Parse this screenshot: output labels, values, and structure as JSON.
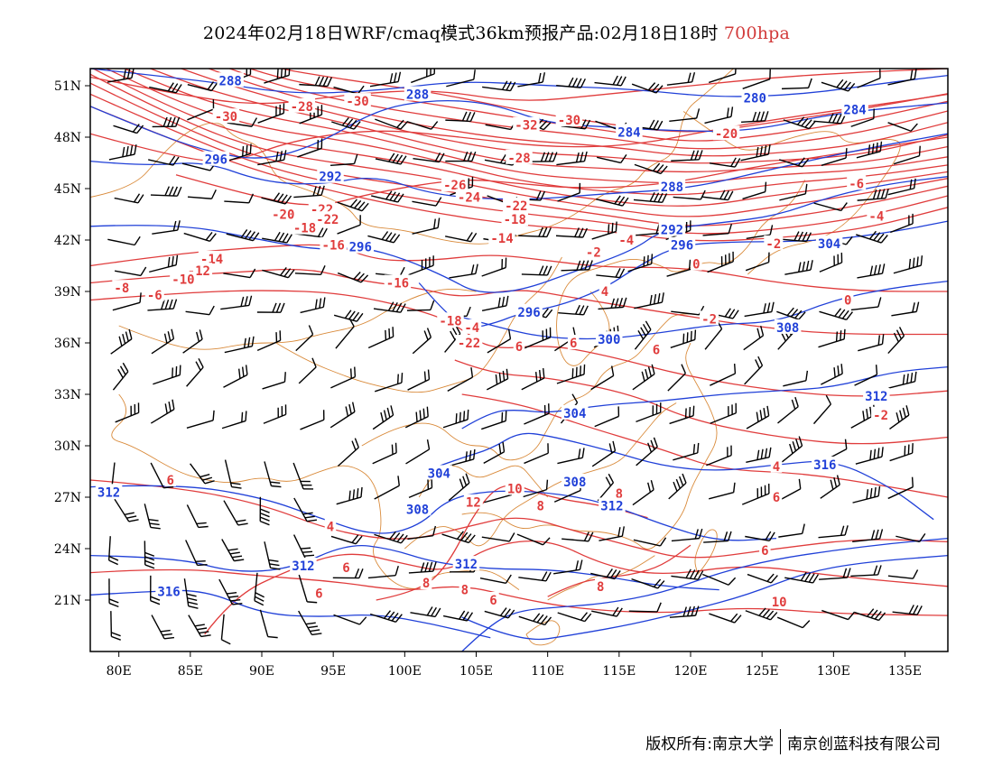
{
  "title": {
    "main": "2024年02月18日WRF/cmaq模式36km预报产品:02月18日18时",
    "level": "700hpa"
  },
  "colors": {
    "temperature": "#e03c3c",
    "height": "#2040d8",
    "border": "#d98a3a",
    "wind": "#000000"
  },
  "axes": {
    "lon_ticks": [
      "80E",
      "85E",
      "90E",
      "95E",
      "100E",
      "105E",
      "110E",
      "115E",
      "120E",
      "125E",
      "130E",
      "135E"
    ],
    "lat_ticks": [
      "21N",
      "24N",
      "27N",
      "30N",
      "33N",
      "36N",
      "39N",
      "42N",
      "45N",
      "48N",
      "51N"
    ]
  },
  "map_extent": {
    "lon": [
      78,
      138
    ],
    "lat": [
      18,
      52
    ]
  },
  "temperature_labels": [
    {
      "text": "-30",
      "lon": 87.5,
      "lat": 49.2
    },
    {
      "text": "-28",
      "lon": 92.8,
      "lat": 49.8
    },
    {
      "text": "-30",
      "lon": 96.7,
      "lat": 50.1
    },
    {
      "text": "-32",
      "lon": 108.5,
      "lat": 48.7
    },
    {
      "text": "-30",
      "lon": 111.5,
      "lat": 49.0
    },
    {
      "text": "-28",
      "lon": 108.0,
      "lat": 46.8
    },
    {
      "text": "-26",
      "lon": 103.5,
      "lat": 45.2
    },
    {
      "text": "-24",
      "lon": 104.5,
      "lat": 44.5
    },
    {
      "text": "-22",
      "lon": 107.8,
      "lat": 44.0
    },
    {
      "text": "-18",
      "lon": 107.7,
      "lat": 43.2
    },
    {
      "text": "-14",
      "lon": 106.8,
      "lat": 42.1
    },
    {
      "text": "-20",
      "lon": 122.5,
      "lat": 48.2
    },
    {
      "text": "-20",
      "lon": 91.5,
      "lat": 43.5
    },
    {
      "text": "-22",
      "lon": 94.2,
      "lat": 43.8
    },
    {
      "text": "-22",
      "lon": 94.6,
      "lat": 43.2
    },
    {
      "text": "-18",
      "lon": 93.0,
      "lat": 42.7
    },
    {
      "text": "-16",
      "lon": 95.0,
      "lat": 41.7
    },
    {
      "text": "-14",
      "lon": 86.5,
      "lat": 40.9
    },
    {
      "text": "-12",
      "lon": 85.6,
      "lat": 40.2
    },
    {
      "text": "-10",
      "lon": 84.5,
      "lat": 39.7
    },
    {
      "text": "-8",
      "lon": 80.2,
      "lat": 39.2
    },
    {
      "text": "-6",
      "lon": 82.5,
      "lat": 38.8
    },
    {
      "text": "-16",
      "lon": 99.5,
      "lat": 39.5
    },
    {
      "text": "-18",
      "lon": 103.2,
      "lat": 37.3
    },
    {
      "text": "-4",
      "lon": 104.7,
      "lat": 36.9
    },
    {
      "text": "-22",
      "lon": 104.5,
      "lat": 36.0
    },
    {
      "text": "-4",
      "lon": 115.5,
      "lat": 42.0
    },
    {
      "text": "-2",
      "lon": 113.2,
      "lat": 41.3
    },
    {
      "text": "0",
      "lon": 120.4,
      "lat": 40.6
    },
    {
      "text": "4",
      "lon": 114.0,
      "lat": 39.0
    },
    {
      "text": "-2",
      "lon": 121.3,
      "lat": 37.4
    },
    {
      "text": "-6",
      "lon": 131.6,
      "lat": 45.3
    },
    {
      "text": "-4",
      "lon": 133.0,
      "lat": 43.4
    },
    {
      "text": "-2",
      "lon": 125.8,
      "lat": 41.8
    },
    {
      "text": "0",
      "lon": 131.0,
      "lat": 38.5
    },
    {
      "text": "6",
      "lon": 108.0,
      "lat": 35.8
    },
    {
      "text": "6",
      "lon": 111.8,
      "lat": 36.0
    },
    {
      "text": "6",
      "lon": 117.6,
      "lat": 35.6
    },
    {
      "text": "-2",
      "lon": 133.3,
      "lat": 31.8
    },
    {
      "text": "4",
      "lon": 126.0,
      "lat": 28.8
    },
    {
      "text": "6",
      "lon": 83.6,
      "lat": 28.0
    },
    {
      "text": "4",
      "lon": 94.8,
      "lat": 25.3
    },
    {
      "text": "6",
      "lon": 95.9,
      "lat": 22.9
    },
    {
      "text": "6",
      "lon": 94.0,
      "lat": 21.4
    },
    {
      "text": "10",
      "lon": 107.7,
      "lat": 27.5
    },
    {
      "text": "12",
      "lon": 104.8,
      "lat": 26.7
    },
    {
      "text": "8",
      "lon": 109.5,
      "lat": 26.5
    },
    {
      "text": "8",
      "lon": 104.2,
      "lat": 21.6
    },
    {
      "text": "8",
      "lon": 115.0,
      "lat": 27.2
    },
    {
      "text": "6",
      "lon": 126.0,
      "lat": 27.0
    },
    {
      "text": "6",
      "lon": 125.2,
      "lat": 23.9
    },
    {
      "text": "8",
      "lon": 101.5,
      "lat": 22.0
    },
    {
      "text": "6",
      "lon": 106.2,
      "lat": 21.0
    },
    {
      "text": "8",
      "lon": 113.7,
      "lat": 21.8
    },
    {
      "text": "10",
      "lon": 126.2,
      "lat": 20.9
    }
  ],
  "height_labels": [
    {
      "text": "288",
      "lon": 87.8,
      "lat": 51.3
    },
    {
      "text": "288",
      "lon": 100.9,
      "lat": 50.5
    },
    {
      "text": "280",
      "lon": 124.5,
      "lat": 50.3
    },
    {
      "text": "284",
      "lon": 131.5,
      "lat": 49.6
    },
    {
      "text": "284",
      "lon": 115.7,
      "lat": 48.3
    },
    {
      "text": "296",
      "lon": 86.8,
      "lat": 46.7
    },
    {
      "text": "292",
      "lon": 94.8,
      "lat": 45.7
    },
    {
      "text": "288",
      "lon": 118.7,
      "lat": 45.1
    },
    {
      "text": "292",
      "lon": 118.7,
      "lat": 42.6
    },
    {
      "text": "296",
      "lon": 96.9,
      "lat": 41.6
    },
    {
      "text": "296",
      "lon": 119.4,
      "lat": 41.7
    },
    {
      "text": "304",
      "lon": 129.7,
      "lat": 41.8
    },
    {
      "text": "296",
      "lon": 108.7,
      "lat": 37.8
    },
    {
      "text": "300",
      "lon": 114.3,
      "lat": 36.2
    },
    {
      "text": "308",
      "lon": 126.8,
      "lat": 36.9
    },
    {
      "text": "312",
      "lon": 133.0,
      "lat": 32.9
    },
    {
      "text": "304",
      "lon": 111.9,
      "lat": 31.9
    },
    {
      "text": "316",
      "lon": 129.4,
      "lat": 28.9
    },
    {
      "text": "304",
      "lon": 102.4,
      "lat": 28.4
    },
    {
      "text": "308",
      "lon": 111.9,
      "lat": 27.9
    },
    {
      "text": "312",
      "lon": 114.5,
      "lat": 26.5
    },
    {
      "text": "312",
      "lon": 79.3,
      "lat": 27.3
    },
    {
      "text": "308",
      "lon": 100.9,
      "lat": 26.3
    },
    {
      "text": "312",
      "lon": 92.9,
      "lat": 23.0
    },
    {
      "text": "312",
      "lon": 104.3,
      "lat": 23.1
    },
    {
      "text": "316",
      "lon": 83.5,
      "lat": 21.5
    }
  ],
  "footer": {
    "left": "版权所有:南京大学",
    "right": "南京创蓝科技有限公司"
  }
}
